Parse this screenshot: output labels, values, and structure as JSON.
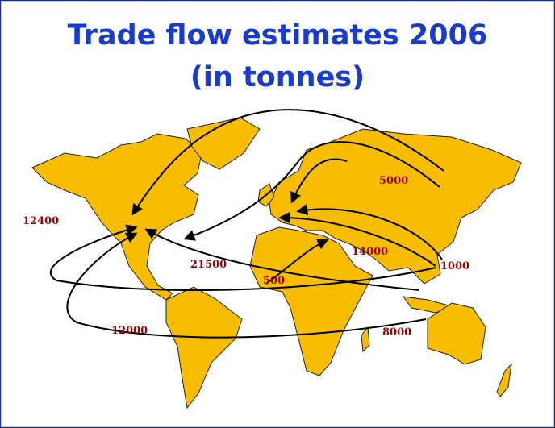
{
  "title": [
    "Trade flow estimates 2006",
    "(in tonnes)"
  ],
  "flows": [
    5000,
    12400,
    21500,
    14000,
    500,
    1000,
    12000,
    8000
  ]
}
